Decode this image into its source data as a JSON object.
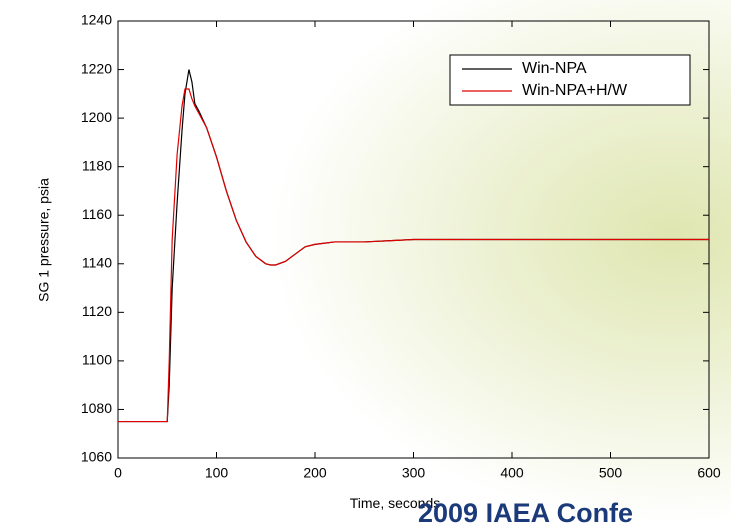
{
  "chart_data": {
    "type": "line",
    "y_label": "SG 1 pressure, psia",
    "x_label": "Time, seconds",
    "annotation": "2009 IAEA Confe",
    "x": [
      0,
      50,
      52,
      55,
      60,
      65,
      68,
      72,
      75,
      78,
      82,
      90,
      100,
      110,
      120,
      130,
      140,
      150,
      155,
      160,
      170,
      180,
      190,
      200,
      210,
      220,
      250,
      300,
      350,
      400,
      450,
      500,
      550,
      600
    ],
    "series": [
      {
        "name": "Win-NPA",
        "color": "#000000",
        "values": [
          1075,
          1075,
          1090,
          1130,
          1165,
          1195,
          1210,
          1220,
          1215,
          1206,
          1203,
          1196,
          1184,
          1170,
          1158,
          1149,
          1143,
          1140,
          1139.5,
          1139.5,
          1141,
          1144,
          1147,
          1148,
          1148.5,
          1149,
          1149,
          1150,
          1150,
          1150,
          1150,
          1150,
          1150,
          1150
        ]
      },
      {
        "name": "Win-NPA+H/W",
        "color": "#e00000",
        "values": [
          1075,
          1075,
          1100,
          1150,
          1185,
          1205,
          1212,
          1212,
          1208,
          1205,
          1202,
          1196,
          1184,
          1170,
          1158,
          1149,
          1143,
          1140,
          1139.5,
          1139.5,
          1141,
          1144,
          1147,
          1148,
          1148.5,
          1149,
          1149,
          1150,
          1150,
          1150,
          1150,
          1150,
          1150,
          1150
        ]
      }
    ],
    "xlim": [
      0,
      600
    ],
    "xticks": [
      0,
      100,
      200,
      300,
      400,
      500,
      600
    ],
    "ylim": [
      1060,
      1240
    ],
    "yticks": [
      1060,
      1080,
      1100,
      1120,
      1140,
      1160,
      1180,
      1200,
      1220,
      1240
    ],
    "legend": "top-right"
  }
}
